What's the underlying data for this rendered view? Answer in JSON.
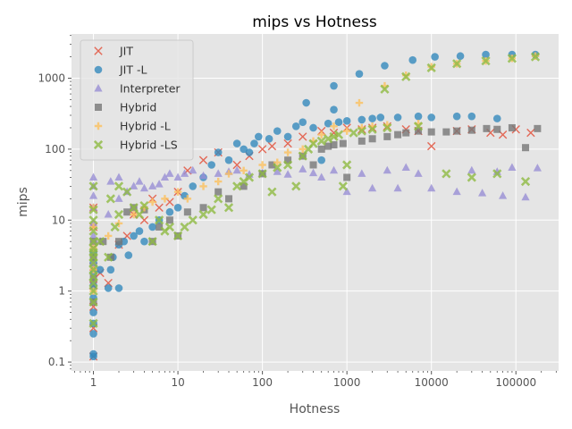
{
  "chart_data": {
    "type": "scatter",
    "title": "mips vs Hotness",
    "xlabel": "Hotness",
    "ylabel": "mips",
    "xscale": "log",
    "yscale": "log",
    "xlim": [
      0.55,
      320000
    ],
    "ylim": [
      0.075,
      4200
    ],
    "x_ticks": [
      {
        "value": 1,
        "label": "1"
      },
      {
        "value": 10,
        "label": "10"
      },
      {
        "value": 100,
        "label": "100"
      },
      {
        "value": 1000,
        "label": "1000"
      },
      {
        "value": 10000,
        "label": "10000"
      },
      {
        "value": 100000,
        "label": "100000"
      }
    ],
    "y_ticks": [
      {
        "value": 0.1,
        "label": "0.1"
      },
      {
        "value": 1,
        "label": "1"
      },
      {
        "value": 10,
        "label": "10"
      },
      {
        "value": 100,
        "label": "100"
      },
      {
        "value": 1000,
        "label": "1000"
      }
    ],
    "grid": true,
    "legend_position": "top-left",
    "series": [
      {
        "name": "JIT",
        "marker": "x",
        "color": "#e24a33",
        "points": [
          [
            1,
            0.12
          ],
          [
            1,
            0.3
          ],
          [
            1,
            0.6
          ],
          [
            1,
            1.2
          ],
          [
            1,
            2.2
          ],
          [
            1,
            4
          ],
          [
            1,
            8
          ],
          [
            1,
            15
          ],
          [
            1.2,
            1.8
          ],
          [
            1.5,
            1.3
          ],
          [
            2,
            4.5
          ],
          [
            2.5,
            6
          ],
          [
            3,
            12
          ],
          [
            4,
            10
          ],
          [
            5,
            20
          ],
          [
            6,
            15
          ],
          [
            8,
            18
          ],
          [
            10,
            25
          ],
          [
            13,
            50
          ],
          [
            20,
            70
          ],
          [
            30,
            90
          ],
          [
            50,
            60
          ],
          [
            70,
            80
          ],
          [
            100,
            100
          ],
          [
            130,
            110
          ],
          [
            200,
            120
          ],
          [
            300,
            150
          ],
          [
            500,
            180
          ],
          [
            700,
            170
          ],
          [
            1000,
            200
          ],
          [
            1500,
            190
          ],
          [
            2000,
            200
          ],
          [
            3000,
            210
          ],
          [
            5000,
            190
          ],
          [
            7000,
            180
          ],
          [
            10000,
            110
          ],
          [
            20000,
            180
          ],
          [
            30000,
            190
          ],
          [
            50000,
            170
          ],
          [
            70000,
            160
          ],
          [
            100000,
            190
          ],
          [
            150000,
            170
          ]
        ]
      },
      {
        "name": "JIT -L",
        "marker": "circle",
        "color": "#348abd",
        "points": [
          [
            1,
            0.12
          ],
          [
            1,
            0.13
          ],
          [
            1,
            0.25
          ],
          [
            1,
            0.35
          ],
          [
            1,
            0.5
          ],
          [
            1,
            0.8
          ],
          [
            1,
            1.2
          ],
          [
            1,
            1.8
          ],
          [
            1,
            2.5
          ],
          [
            1,
            3.5
          ],
          [
            1.2,
            2
          ],
          [
            1.5,
            1.1
          ],
          [
            1.6,
            2
          ],
          [
            1.7,
            3
          ],
          [
            2,
            1.1
          ],
          [
            2,
            4.5
          ],
          [
            2.3,
            5
          ],
          [
            2.6,
            3.2
          ],
          [
            3,
            6
          ],
          [
            3.5,
            7
          ],
          [
            4,
            5
          ],
          [
            5,
            8
          ],
          [
            6,
            10
          ],
          [
            8,
            13
          ],
          [
            10,
            15
          ],
          [
            12,
            22
          ],
          [
            15,
            30
          ],
          [
            20,
            40
          ],
          [
            25,
            60
          ],
          [
            30,
            90
          ],
          [
            40,
            70
          ],
          [
            50,
            120
          ],
          [
            60,
            100
          ],
          [
            70,
            90
          ],
          [
            80,
            120
          ],
          [
            90,
            150
          ],
          [
            120,
            140
          ],
          [
            150,
            180
          ],
          [
            200,
            150
          ],
          [
            250,
            210
          ],
          [
            300,
            240
          ],
          [
            330,
            450
          ],
          [
            400,
            200
          ],
          [
            500,
            70
          ],
          [
            600,
            230
          ],
          [
            700,
            360
          ],
          [
            700,
            780
          ],
          [
            800,
            240
          ],
          [
            1000,
            250
          ],
          [
            1400,
            1150
          ],
          [
            1500,
            260
          ],
          [
            2000,
            270
          ],
          [
            2500,
            280
          ],
          [
            2800,
            1500
          ],
          [
            4000,
            280
          ],
          [
            6000,
            1800
          ],
          [
            7000,
            290
          ],
          [
            10000,
            280
          ],
          [
            11000,
            2000
          ],
          [
            20000,
            290
          ],
          [
            22000,
            2050
          ],
          [
            30000,
            290
          ],
          [
            44000,
            2150
          ],
          [
            60000,
            270
          ],
          [
            90000,
            2150
          ],
          [
            170000,
            2150
          ]
        ]
      },
      {
        "name": "Interpreter",
        "marker": "triangle",
        "color": "#988ed5",
        "points": [
          [
            1,
            1.5
          ],
          [
            1,
            2.5
          ],
          [
            1,
            4
          ],
          [
            1,
            6
          ],
          [
            1,
            9
          ],
          [
            1,
            15
          ],
          [
            1,
            22
          ],
          [
            1,
            30
          ],
          [
            1,
            40
          ],
          [
            1.2,
            5
          ],
          [
            1.5,
            12
          ],
          [
            1.6,
            35
          ],
          [
            2,
            20
          ],
          [
            2,
            40
          ],
          [
            2.5,
            25
          ],
          [
            3,
            30
          ],
          [
            3.5,
            35
          ],
          [
            4,
            28
          ],
          [
            5,
            30
          ],
          [
            6,
            32
          ],
          [
            7,
            40
          ],
          [
            8,
            45
          ],
          [
            10,
            40
          ],
          [
            12,
            45
          ],
          [
            15,
            50
          ],
          [
            20,
            42
          ],
          [
            30,
            45
          ],
          [
            40,
            48
          ],
          [
            50,
            50
          ],
          [
            70,
            44
          ],
          [
            100,
            46
          ],
          [
            150,
            48
          ],
          [
            200,
            44
          ],
          [
            300,
            52
          ],
          [
            400,
            46
          ],
          [
            500,
            40
          ],
          [
            700,
            50
          ],
          [
            1000,
            25
          ],
          [
            1500,
            45
          ],
          [
            2000,
            28
          ],
          [
            3000,
            50
          ],
          [
            4000,
            28
          ],
          [
            5000,
            55
          ],
          [
            7000,
            45
          ],
          [
            10000,
            28
          ],
          [
            20000,
            25
          ],
          [
            30000,
            50
          ],
          [
            40000,
            24
          ],
          [
            60000,
            48
          ],
          [
            70000,
            22
          ],
          [
            90000,
            55
          ],
          [
            130000,
            21
          ],
          [
            180000,
            54
          ]
        ]
      },
      {
        "name": "Hybrid",
        "marker": "square",
        "color": "#777777",
        "points": [
          [
            1,
            0.7
          ],
          [
            1,
            1.5
          ],
          [
            1,
            3
          ],
          [
            1,
            5
          ],
          [
            1.3,
            5
          ],
          [
            1.6,
            3
          ],
          [
            2,
            5
          ],
          [
            2.5,
            13
          ],
          [
            3,
            15
          ],
          [
            4,
            14
          ],
          [
            5,
            5
          ],
          [
            6,
            8
          ],
          [
            8,
            10
          ],
          [
            10,
            6
          ],
          [
            13,
            13
          ],
          [
            20,
            15
          ],
          [
            30,
            25
          ],
          [
            40,
            20
          ],
          [
            60,
            30
          ],
          [
            100,
            45
          ],
          [
            130,
            60
          ],
          [
            200,
            70
          ],
          [
            300,
            80
          ],
          [
            400,
            60
          ],
          [
            500,
            100
          ],
          [
            600,
            110
          ],
          [
            700,
            115
          ],
          [
            900,
            120
          ],
          [
            1000,
            40
          ],
          [
            1500,
            130
          ],
          [
            2000,
            140
          ],
          [
            3000,
            150
          ],
          [
            4000,
            160
          ],
          [
            5000,
            170
          ],
          [
            7000,
            180
          ],
          [
            10000,
            175
          ],
          [
            15000,
            175
          ],
          [
            20000,
            180
          ],
          [
            30000,
            185
          ],
          [
            45000,
            195
          ],
          [
            60000,
            190
          ],
          [
            90000,
            200
          ],
          [
            130000,
            105
          ],
          [
            180000,
            195
          ]
        ]
      },
      {
        "name": "Hybrid -L",
        "marker": "plus",
        "color": "#fbc15e",
        "points": [
          [
            1,
            1
          ],
          [
            1,
            2
          ],
          [
            1,
            4
          ],
          [
            1,
            8
          ],
          [
            1,
            15
          ],
          [
            1.5,
            6
          ],
          [
            2,
            9
          ],
          [
            3,
            12
          ],
          [
            4,
            15
          ],
          [
            5,
            18
          ],
          [
            7,
            20
          ],
          [
            10,
            25
          ],
          [
            13,
            20
          ],
          [
            20,
            30
          ],
          [
            30,
            35
          ],
          [
            40,
            45
          ],
          [
            60,
            50
          ],
          [
            100,
            60
          ],
          [
            150,
            65
          ],
          [
            200,
            90
          ],
          [
            300,
            100
          ],
          [
            400,
            130
          ],
          [
            500,
            160
          ],
          [
            700,
            210
          ],
          [
            1000,
            180
          ],
          [
            1400,
            450
          ],
          [
            1500,
            200
          ],
          [
            2000,
            210
          ],
          [
            2800,
            780
          ],
          [
            3000,
            220
          ],
          [
            5000,
            1100
          ],
          [
            7000,
            230
          ],
          [
            10000,
            1450
          ],
          [
            20000,
            1600
          ],
          [
            44000,
            1750
          ],
          [
            90000,
            1900
          ],
          [
            170000,
            2050
          ]
        ]
      },
      {
        "name": "Hybrid -LS",
        "marker": "x-bold",
        "color": "#8eba42",
        "points": [
          [
            1,
            0.35
          ],
          [
            1,
            0.7
          ],
          [
            1,
            1
          ],
          [
            1,
            1.3
          ],
          [
            1,
            1.6
          ],
          [
            1,
            2
          ],
          [
            1,
            2.5
          ],
          [
            1,
            3
          ],
          [
            1,
            3.5
          ],
          [
            1,
            4
          ],
          [
            1,
            5
          ],
          [
            1,
            7
          ],
          [
            1,
            10
          ],
          [
            1,
            14
          ],
          [
            1,
            30
          ],
          [
            1.2,
            5
          ],
          [
            1.5,
            3
          ],
          [
            1.6,
            20
          ],
          [
            1.8,
            8
          ],
          [
            2,
            12
          ],
          [
            2,
            30
          ],
          [
            2.5,
            25
          ],
          [
            3,
            15
          ],
          [
            3.5,
            12
          ],
          [
            4,
            16
          ],
          [
            5,
            5
          ],
          [
            6,
            10
          ],
          [
            7,
            7
          ],
          [
            8,
            8
          ],
          [
            10,
            6
          ],
          [
            12,
            8
          ],
          [
            15,
            10
          ],
          [
            20,
            12
          ],
          [
            25,
            14
          ],
          [
            30,
            20
          ],
          [
            40,
            15
          ],
          [
            50,
            30
          ],
          [
            60,
            35
          ],
          [
            70,
            40
          ],
          [
            100,
            45
          ],
          [
            130,
            25
          ],
          [
            150,
            55
          ],
          [
            200,
            60
          ],
          [
            250,
            30
          ],
          [
            300,
            80
          ],
          [
            350,
            100
          ],
          [
            400,
            120
          ],
          [
            500,
            130
          ],
          [
            600,
            140
          ],
          [
            700,
            150
          ],
          [
            800,
            160
          ],
          [
            900,
            30
          ],
          [
            1000,
            60
          ],
          [
            1200,
            170
          ],
          [
            1500,
            180
          ],
          [
            2000,
            190
          ],
          [
            2800,
            700
          ],
          [
            3000,
            200
          ],
          [
            5000,
            1050
          ],
          [
            7000,
            210
          ],
          [
            10000,
            1400
          ],
          [
            15000,
            45
          ],
          [
            20000,
            1600
          ],
          [
            30000,
            40
          ],
          [
            44000,
            1750
          ],
          [
            60000,
            45
          ],
          [
            90000,
            1900
          ],
          [
            130000,
            35
          ],
          [
            170000,
            2000
          ]
        ]
      }
    ]
  }
}
